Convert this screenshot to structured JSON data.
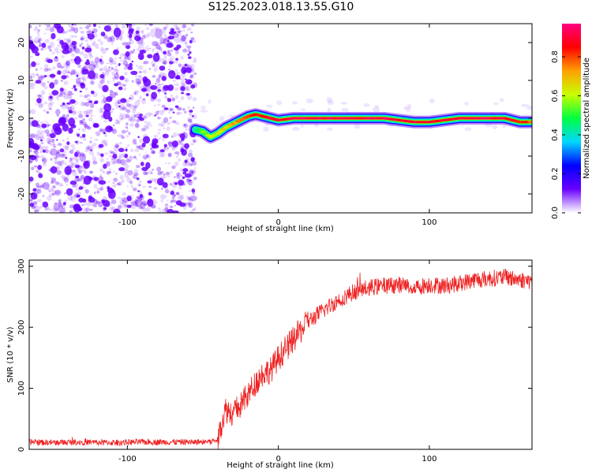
{
  "figure": {
    "title": "S125.2023.018.13.55.G10"
  },
  "colorbar": {
    "label": "Normalized spectral amplitude",
    "ticks": [
      "0.0",
      "0.2",
      "0.4",
      "0.6",
      "0.8"
    ],
    "tick_values": [
      0.0,
      0.2,
      0.4,
      0.6,
      0.8
    ],
    "range": [
      0,
      0.97
    ],
    "colors": [
      "#ffffff",
      "#6a00ff",
      "#0000ff",
      "#00d8ff",
      "#00ff40",
      "#c8ff00",
      "#ffa000",
      "#ff0000",
      "#ff0080"
    ]
  },
  "chart_data": [
    {
      "type": "heatmap",
      "title": "S125.2023.018.13.55.G10",
      "xlabel": "Height of straight line (km)",
      "ylabel": "Frequency (Hz)",
      "xlim": [
        -165,
        168
      ],
      "ylim": [
        -25,
        25
      ],
      "xticks": [
        -100,
        0,
        100
      ],
      "xtick_labels": [
        "-100",
        "0",
        "100"
      ],
      "yticks": [
        -20,
        -10,
        0,
        10,
        20
      ],
      "ytick_labels": [
        "-20",
        "-10",
        "0",
        "10",
        "20"
      ],
      "noise_region": {
        "x_range": [
          -165,
          -55
        ],
        "description_color": "#6a00ff"
      },
      "signal_track": {
        "x": [
          -55,
          -50,
          -45,
          -40,
          -35,
          -30,
          -25,
          -20,
          -15,
          -10,
          -5,
          0,
          10,
          20,
          30,
          40,
          50,
          60,
          70,
          80,
          90,
          100,
          110,
          120,
          130,
          140,
          150,
          160,
          168
        ],
        "y": [
          -3,
          -3.5,
          -5,
          -4,
          -2.5,
          -1.5,
          -0.5,
          0.5,
          1,
          0.5,
          0,
          -0.5,
          0,
          0,
          0,
          0,
          0,
          0,
          0,
          -0.5,
          -1,
          -1,
          -0.5,
          0,
          0,
          0,
          0,
          -1,
          -1
        ],
        "amplitude": [
          0.4,
          0.55,
          0.6,
          0.6,
          0.65,
          0.7,
          0.75,
          0.8,
          0.85,
          0.85,
          0.9,
          0.9,
          0.92,
          0.92,
          0.92,
          0.93,
          0.9,
          0.92,
          0.92,
          0.9,
          0.9,
          0.9,
          0.88,
          0.92,
          0.92,
          0.92,
          0.9,
          0.85,
          0.8
        ]
      }
    },
    {
      "type": "line",
      "xlabel": "Height of straight line (km)",
      "ylabel": "SNR (10 * v/v)",
      "xlim": [
        -165,
        168
      ],
      "ylim": [
        0,
        310
      ],
      "xticks": [
        -100,
        0,
        100
      ],
      "xtick_labels": [
        "-100",
        "0",
        "100"
      ],
      "yticks": [
        0,
        100,
        200,
        300
      ],
      "ytick_labels": [
        "0",
        "100",
        "200",
        "300"
      ],
      "color": "#ee2222",
      "x": [
        -165,
        -150,
        -130,
        -110,
        -90,
        -70,
        -55,
        -45,
        -40,
        -38,
        -35,
        -30,
        -25,
        -20,
        -15,
        -10,
        -5,
        0,
        5,
        10,
        15,
        20,
        30,
        40,
        50,
        60,
        70,
        80,
        90,
        100,
        110,
        120,
        130,
        140,
        150,
        160,
        168
      ],
      "y": [
        12,
        11,
        12,
        11,
        12,
        12,
        12,
        13,
        15,
        40,
        65,
        60,
        72,
        90,
        110,
        125,
        130,
        150,
        165,
        180,
        195,
        210,
        228,
        245,
        258,
        265,
        268,
        270,
        265,
        270,
        268,
        272,
        278,
        280,
        282,
        278,
        275
      ]
    }
  ]
}
